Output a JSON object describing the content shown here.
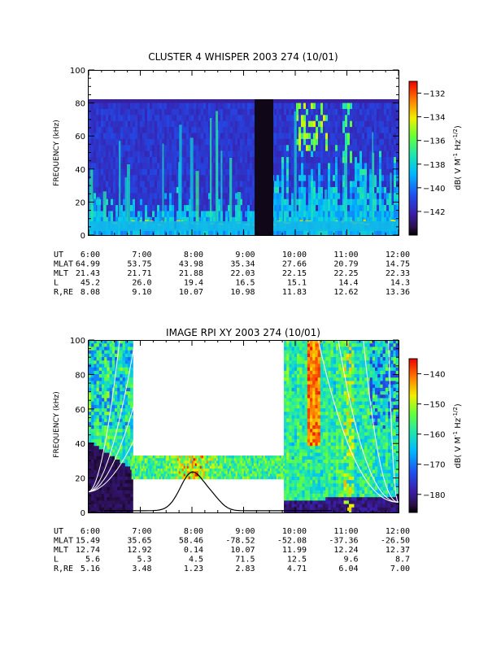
{
  "chart_data": [
    {
      "type": "heatmap",
      "title": "CLUSTER 4 WHISPER 2003 274 (10/01)",
      "ylabel": "FREQUENCY (kHz)",
      "ylim": [
        0,
        100
      ],
      "yticks": [
        "0",
        "20",
        "40",
        "60",
        "80",
        "100"
      ],
      "xlim_hours": [
        6,
        12
      ],
      "colorbar": {
        "label": "dB( V M",
        "label_sup": "-1",
        "label_mid": " Hz",
        "label_sup2": "-1/2",
        "label_end": ")",
        "range": [
          -144,
          -131
        ],
        "ticks": [
          -142,
          -140,
          -138,
          -136,
          -134,
          -132
        ]
      },
      "data_ceiling_khz": 80,
      "data_gap_hours": [
        9.25,
        9.42
      ],
      "ephemeris": {
        "labels": [
          "UT",
          "MLAT",
          "MLT",
          "L",
          "R,RE"
        ],
        "columns": [
          [
            "6:00",
            "64.99",
            "21.43",
            "45.2",
            "8.08"
          ],
          [
            "7:00",
            "53.75",
            "21.71",
            "26.0",
            "9.10"
          ],
          [
            "8:00",
            "43.98",
            "21.88",
            "19.4",
            "10.07"
          ],
          [
            "9:00",
            "35.34",
            "22.03",
            "16.5",
            "10.98"
          ],
          [
            "10:00",
            "27.66",
            "22.15",
            "15.1",
            "11.83"
          ],
          [
            "11:00",
            "20.79",
            "22.25",
            "14.4",
            "12.62"
          ],
          [
            "12:00",
            "14.75",
            "22.33",
            "14.3",
            "13.36"
          ]
        ]
      }
    },
    {
      "type": "heatmap",
      "title": "IMAGE RPI XY 2003 274 (10/01)",
      "ylabel": "FREQUENCY (kHz)",
      "ylim": [
        0,
        100
      ],
      "yticks": [
        "0",
        "20",
        "40",
        "60",
        "80",
        "100"
      ],
      "xlim_hours": [
        6,
        12
      ],
      "colorbar": {
        "label": "dB( V M",
        "label_sup": "-1",
        "label_mid": " Hz",
        "label_sup2": "-1/2",
        "label_end": ")",
        "range": [
          -186,
          -135
        ],
        "ticks": [
          -180,
          -170,
          -160,
          -150,
          -140
        ]
      },
      "data_windows_hours": [
        [
          6.0,
          6.83
        ],
        [
          9.78,
          12.0
        ]
      ],
      "narrow_band_hours": [
        6.83,
        9.78
      ],
      "narrow_band_khz": [
        20,
        33
      ],
      "ephemeris": {
        "labels": [
          "UT",
          "MLAT",
          "MLT",
          "L",
          "R,RE"
        ],
        "columns": [
          [
            "6:00",
            "15.49",
            "12.74",
            "5.6",
            "5.16"
          ],
          [
            "7:00",
            "35.65",
            "12.92",
            "5.3",
            "3.48"
          ],
          [
            "8:00",
            "58.46",
            "0.14",
            "4.5",
            "1.23"
          ],
          [
            "9:00",
            "-78.52",
            "10.07",
            "71.5",
            "2.83"
          ],
          [
            "10:00",
            "-52.08",
            "11.99",
            "12.5",
            "4.71"
          ],
          [
            "11:00",
            "-37.36",
            "12.24",
            "9.6",
            "6.04"
          ],
          [
            "12:00",
            "-26.50",
            "12.37",
            "8.7",
            "7.00"
          ]
        ]
      }
    }
  ]
}
